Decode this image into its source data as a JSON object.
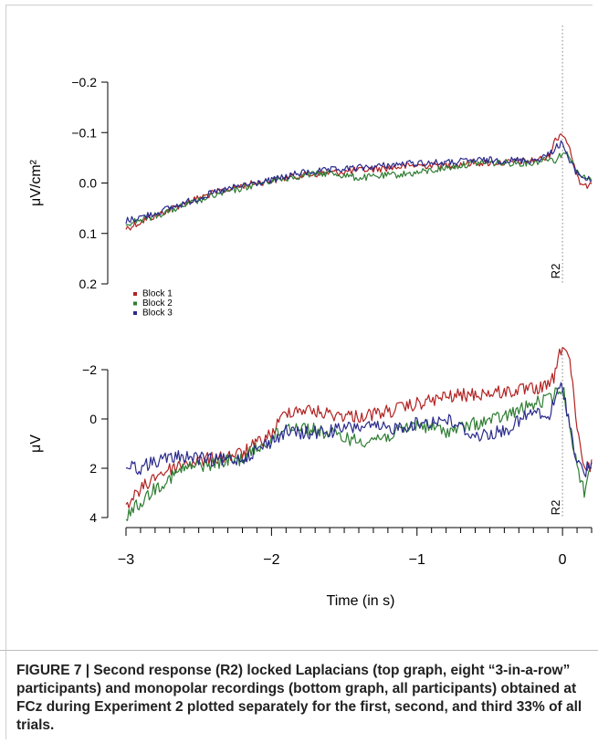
{
  "figure": {
    "caption": "FIGURE 7 | Second response (R2) locked Laplacians (top graph, eight “3-in-a-row” participants) and monopolar recordings (bottom graph, all participants) obtained at FCz during Experiment 2 plotted separately for the first, second, and third 33% of all trials."
  },
  "chart_data": [
    {
      "type": "line",
      "panel": "top",
      "ylabel": "μV/cm²",
      "xlabel": "",
      "xlim": [
        -3.0,
        0.2
      ],
      "ylim": [
        0.2,
        -0.2
      ],
      "y_inverted": true,
      "yticks": [
        -0.2,
        -0.1,
        0.0,
        0.1,
        0.2
      ],
      "ytick_labels": [
        "−0.2",
        "−0.1",
        "0.0",
        "0.1",
        "0.2"
      ],
      "marker": {
        "x": 0,
        "label": "R2"
      },
      "legend": {
        "placement": "bottom-left",
        "entries": [
          "Block 1",
          "Block 2",
          "Block 3"
        ]
      },
      "colors": [
        "#b22222",
        "#2e7d32",
        "#2a2a8c"
      ],
      "series": [
        {
          "name": "Block 1",
          "x": [
            -3.0,
            -2.8,
            -2.6,
            -2.4,
            -2.2,
            -2.0,
            -1.8,
            -1.6,
            -1.4,
            -1.2,
            -1.0,
            -0.8,
            -0.6,
            -0.4,
            -0.2,
            -0.1,
            -0.05,
            0.0,
            0.05,
            0.1,
            0.15,
            0.2
          ],
          "y": [
            0.09,
            0.065,
            0.04,
            0.02,
            0.005,
            -0.005,
            -0.015,
            -0.02,
            -0.025,
            -0.03,
            -0.035,
            -0.035,
            -0.04,
            -0.04,
            -0.045,
            -0.05,
            -0.085,
            -0.1,
            -0.07,
            -0.01,
            0.01,
            -0.005
          ]
        },
        {
          "name": "Block 2",
          "x": [
            -3.0,
            -2.8,
            -2.6,
            -2.4,
            -2.2,
            -2.0,
            -1.8,
            -1.6,
            -1.4,
            -1.2,
            -1.0,
            -0.8,
            -0.6,
            -0.4,
            -0.2,
            -0.1,
            -0.05,
            0.0,
            0.05,
            0.1,
            0.15,
            0.2
          ],
          "y": [
            0.08,
            0.065,
            0.045,
            0.025,
            0.01,
            -0.005,
            -0.015,
            -0.02,
            -0.01,
            -0.015,
            -0.02,
            -0.03,
            -0.04,
            -0.04,
            -0.04,
            -0.05,
            -0.045,
            -0.06,
            -0.055,
            -0.02,
            -0.01,
            -0.005
          ]
        },
        {
          "name": "Block 3",
          "x": [
            -3.0,
            -2.8,
            -2.6,
            -2.4,
            -2.2,
            -2.0,
            -1.8,
            -1.6,
            -1.4,
            -1.2,
            -1.0,
            -0.8,
            -0.6,
            -0.4,
            -0.2,
            -0.1,
            -0.05,
            0.0,
            0.05,
            0.1,
            0.15,
            0.2
          ],
          "y": [
            0.075,
            0.06,
            0.04,
            0.02,
            0.005,
            -0.005,
            -0.02,
            -0.025,
            -0.03,
            -0.035,
            -0.04,
            -0.04,
            -0.045,
            -0.045,
            -0.045,
            -0.055,
            -0.07,
            -0.08,
            -0.04,
            -0.02,
            -0.01,
            -0.005
          ]
        }
      ]
    },
    {
      "type": "line",
      "panel": "bottom",
      "ylabel": "μV",
      "xlabel": "Time (in s)",
      "xlim": [
        -3.0,
        0.2
      ],
      "ylim": [
        4,
        -2
      ],
      "y_inverted": true,
      "yticks": [
        -2,
        0,
        2,
        4
      ],
      "ytick_labels": [
        "−2",
        "0",
        "2",
        "4"
      ],
      "xticks": [
        -3,
        -2,
        -1,
        0
      ],
      "xtick_labels": [
        "−3",
        "−2",
        "−1",
        "0"
      ],
      "marker": {
        "x": 0,
        "label": "R2"
      },
      "colors": [
        "#b22222",
        "#2e7d32",
        "#2a2a8c"
      ],
      "series": [
        {
          "name": "Block 1",
          "x": [
            -3.0,
            -2.9,
            -2.8,
            -2.6,
            -2.4,
            -2.2,
            -2.0,
            -1.9,
            -1.8,
            -1.6,
            -1.4,
            -1.2,
            -1.0,
            -0.8,
            -0.6,
            -0.4,
            -0.2,
            -0.1,
            -0.05,
            0.0,
            0.05,
            0.1,
            0.15,
            0.2
          ],
          "y": [
            3.5,
            2.9,
            2.3,
            1.8,
            1.6,
            1.4,
            0.6,
            -0.3,
            -0.4,
            -0.2,
            -0.1,
            -0.3,
            -0.6,
            -0.9,
            -1.0,
            -1.1,
            -1.2,
            -1.3,
            -1.8,
            -3.1,
            -2.4,
            0.5,
            2.1,
            1.9
          ]
        },
        {
          "name": "Block 2",
          "x": [
            -3.0,
            -2.9,
            -2.8,
            -2.6,
            -2.4,
            -2.2,
            -2.0,
            -1.9,
            -1.8,
            -1.6,
            -1.4,
            -1.2,
            -1.0,
            -0.8,
            -0.6,
            -0.4,
            -0.2,
            -0.1,
            -0.05,
            0.0,
            0.05,
            0.1,
            0.15,
            0.2
          ],
          "y": [
            3.9,
            3.4,
            2.8,
            2.0,
            1.8,
            1.6,
            0.8,
            0.3,
            0.3,
            0.6,
            0.9,
            0.7,
            0.2,
            0.5,
            0.2,
            -0.1,
            -0.6,
            -0.8,
            -1.0,
            -1.3,
            0.2,
            2.0,
            2.9,
            1.8
          ]
        },
        {
          "name": "Block 3",
          "x": [
            -3.0,
            -2.9,
            -2.8,
            -2.6,
            -2.4,
            -2.2,
            -2.0,
            -1.9,
            -1.8,
            -1.6,
            -1.4,
            -1.2,
            -1.0,
            -0.8,
            -0.6,
            -0.4,
            -0.2,
            -0.1,
            -0.05,
            0.0,
            0.05,
            0.1,
            0.15,
            0.2
          ],
          "y": [
            1.9,
            2.0,
            1.7,
            1.5,
            1.7,
            1.6,
            0.9,
            0.5,
            0.6,
            0.5,
            0.3,
            0.4,
            0.2,
            0.0,
            0.7,
            0.5,
            -0.3,
            0.0,
            -0.8,
            -1.4,
            0.3,
            1.7,
            2.2,
            1.7
          ]
        }
      ]
    }
  ]
}
